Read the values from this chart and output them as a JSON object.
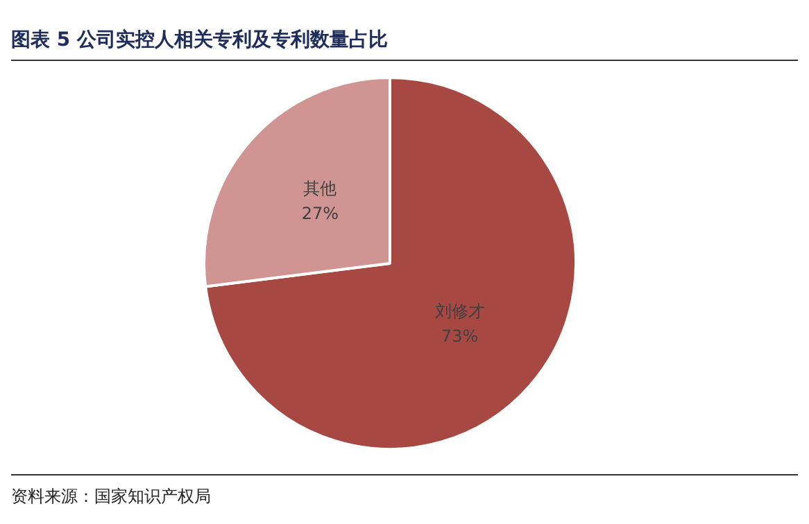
{
  "chart_data": {
    "type": "pie",
    "title": "图表 5 公司实控人相关专利及专利数量占比",
    "categories": [
      "刘修才",
      "其他"
    ],
    "values": [
      73,
      27
    ],
    "colors": [
      "#a84843",
      "#d09592"
    ],
    "value_labels": [
      "73%",
      "27%"
    ],
    "legend": false,
    "annotations": [
      "资料来源：国家知识产权局"
    ]
  }
}
